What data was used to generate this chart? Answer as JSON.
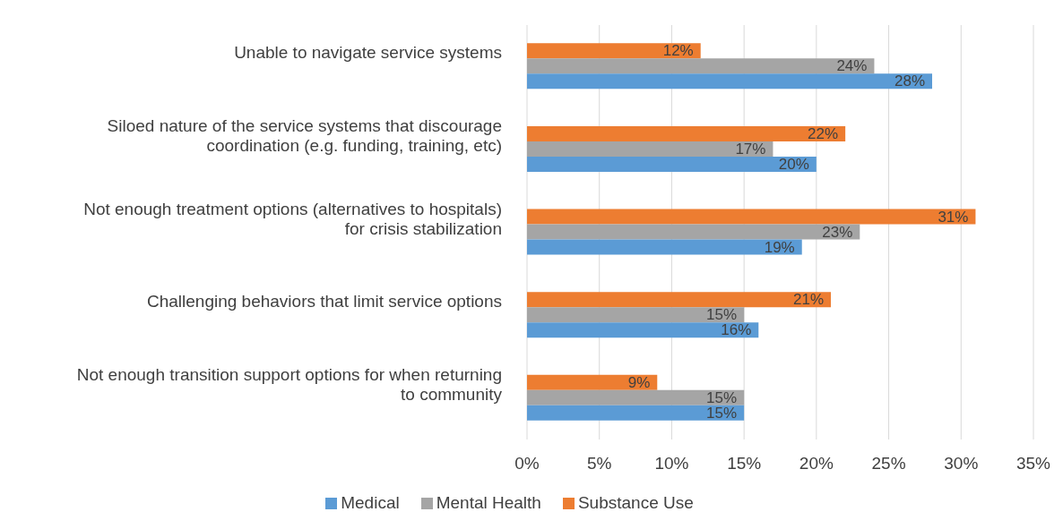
{
  "chart_data": {
    "type": "bar",
    "orientation": "horizontal",
    "categories": [
      "Unable to navigate service systems",
      "Siloed nature of the service systems that discourage coordination (e.g. funding, training, etc)",
      "Not enough treatment options (alternatives to hospitals) for crisis stabilization",
      "Challenging behaviors that limit service options",
      "Not enough transition support options for when returning to community"
    ],
    "series": [
      {
        "name": "Substance Use",
        "color": "#ed7d31",
        "values": [
          12,
          22,
          31,
          21,
          9
        ],
        "value_labels": [
          "12%",
          "22%",
          "31%",
          "21%",
          "9%"
        ]
      },
      {
        "name": "Mental Health",
        "color": "#a5a5a5",
        "values": [
          24,
          17,
          23,
          15,
          15
        ],
        "value_labels": [
          "24%",
          "17%",
          "23%",
          "15%",
          "15%"
        ]
      },
      {
        "name": "Medical",
        "color": "#5b9bd5",
        "values": [
          28,
          20,
          19,
          16,
          15
        ],
        "value_labels": [
          "28%",
          "20%",
          "19%",
          "16%",
          "15%"
        ]
      }
    ],
    "xlim": [
      0,
      35
    ],
    "xticks": [
      {
        "value": 0,
        "label": "0%"
      },
      {
        "value": 5,
        "label": "5%"
      },
      {
        "value": 10,
        "label": "10%"
      },
      {
        "value": 15,
        "label": "15%"
      },
      {
        "value": 20,
        "label": "20%"
      },
      {
        "value": 25,
        "label": "25%"
      },
      {
        "value": 30,
        "label": "30%"
      },
      {
        "value": 35,
        "label": "35%"
      }
    ],
    "grid": "x",
    "legend": "bottom"
  }
}
